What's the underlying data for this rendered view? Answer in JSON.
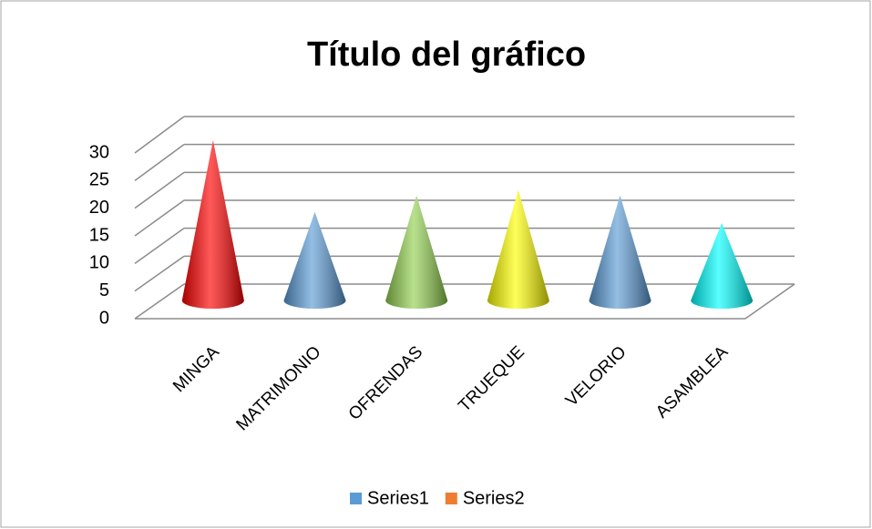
{
  "chart_data": {
    "type": "cone3d",
    "title": "Título del gráfico",
    "categories": [
      "MINGA",
      "MATRIMONIO",
      "OFRENDAS",
      "TRUEQUE",
      "VELORIO",
      "ASAMBLEA"
    ],
    "series": [
      {
        "name": "Series1",
        "color": "#5b9bd5",
        "values": [
          29,
          16,
          19,
          20,
          19,
          14
        ],
        "colors": [
          "#ff0000",
          "#5b9bd5",
          "#92d050",
          "#ffff00",
          "#5b9bd5",
          "#00ffff"
        ]
      },
      {
        "name": "Series2",
        "color": "#ed7d31",
        "values": [
          null,
          null,
          null,
          null,
          null,
          null
        ]
      }
    ],
    "ylim": [
      0,
      30
    ],
    "yticks": [
      0,
      5,
      10,
      15,
      20,
      25,
      30
    ],
    "grid": true,
    "legend": "bottom"
  }
}
